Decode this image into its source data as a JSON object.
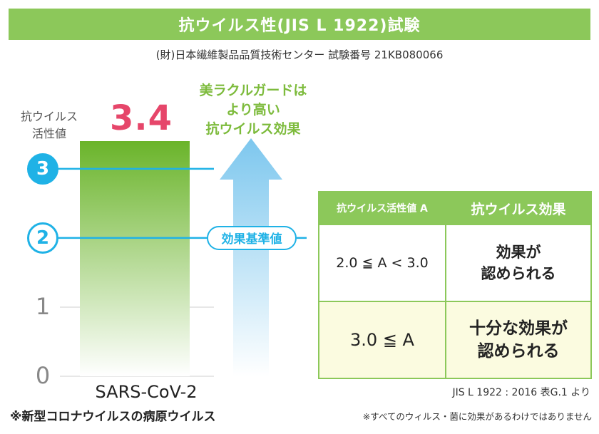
{
  "header": {
    "title": "抗ウイルス性(JIS L 1922)試験",
    "subtitle": "(財)日本繊維製品品質技術センター 試験番号 21KB080066"
  },
  "colors": {
    "banner": "#8cc85a",
    "bar_top": "#6ab42a",
    "bar_bottom": "#ffffff",
    "accent_blue": "#1fb2e6",
    "value_pink": "#e6466a",
    "caption_green": "#7dbb3c"
  },
  "chart_data": {
    "type": "bar",
    "categories": [
      "SARS-CoV-2"
    ],
    "values": [
      3.4
    ],
    "value_label": "3.4",
    "ylabel": "抗ウイルス 活性値",
    "ylim": [
      0,
      3.4
    ],
    "yticks": [
      "0",
      "1",
      "2",
      "3"
    ],
    "reference_lines": [
      {
        "value": 3,
        "style": "filled-circle"
      },
      {
        "value": 2,
        "style": "outline-circle",
        "label": "効果基準値"
      }
    ],
    "annotation": "美ラクルガードは\nより高い\n抗ウイルス効果",
    "grid": true,
    "category_note": "※新型コロナウイルスの病原ウイルス"
  },
  "table": {
    "headers": [
      "抗ウイルス活性値 A",
      "抗ウイルス効果"
    ],
    "rows": [
      {
        "condition": "2.0 ≦ A < 3.0",
        "effect": "効果が\n認められる"
      },
      {
        "condition": "3.0 ≦ A",
        "effect": "十分な効果が\n認められる"
      }
    ],
    "source": "JIS L 1922 : 2016 表G.1 より"
  },
  "footer": {
    "disclaimer": "※すべてのウィルス・菌に効果があるわけではありません"
  }
}
